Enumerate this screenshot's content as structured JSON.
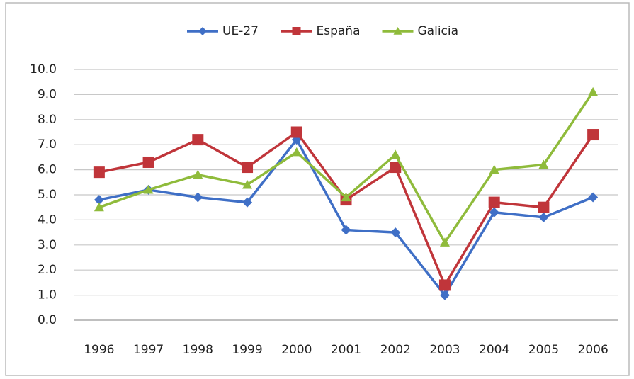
{
  "chart_data": {
    "type": "line",
    "categories": [
      "1996",
      "1997",
      "1998",
      "1999",
      "2000",
      "2001",
      "2002",
      "2003",
      "2004",
      "2005",
      "2006"
    ],
    "series": [
      {
        "name": "UE-27",
        "color": "#3f6fc6",
        "marker": "diamond",
        "values": [
          4.8,
          5.2,
          4.9,
          4.7,
          7.2,
          3.6,
          3.5,
          1.0,
          4.3,
          4.1,
          4.9
        ]
      },
      {
        "name": "España",
        "color": "#c0353a",
        "marker": "square",
        "values": [
          5.9,
          6.3,
          7.2,
          6.1,
          7.5,
          4.8,
          6.1,
          1.4,
          4.7,
          4.5,
          7.4
        ]
      },
      {
        "name": "Galicia",
        "color": "#8fbb3b",
        "marker": "triangle",
        "values": [
          4.5,
          5.2,
          5.8,
          5.4,
          6.7,
          4.9,
          6.6,
          3.1,
          6.0,
          6.2,
          9.1
        ]
      }
    ],
    "ylim": [
      0,
      10
    ],
    "yticks": [
      {
        "value": 0,
        "label": "0.0"
      },
      {
        "value": 1,
        "label": "1.0"
      },
      {
        "value": 2,
        "label": "2.0"
      },
      {
        "value": 3,
        "label": "3.0"
      },
      {
        "value": 4,
        "label": "4.0"
      },
      {
        "value": 5,
        "label": "5.0"
      },
      {
        "value": 6,
        "label": "6.0"
      },
      {
        "value": 7,
        "label": "7.0"
      },
      {
        "value": 8,
        "label": "8.0"
      },
      {
        "value": 9,
        "label": "9.0"
      },
      {
        "value": 10,
        "label": "10.0"
      }
    ],
    "grid": true,
    "legend": "top"
  }
}
